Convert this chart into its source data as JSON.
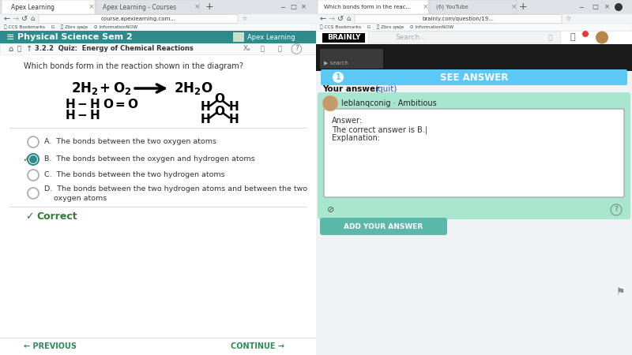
{
  "left_panel": {
    "bg_color": "#ffffff",
    "header_color": "#2e8b8b",
    "header_text": "Physical Science Sem 2",
    "header_text_color": "#ffffff",
    "breadcrumb": "3.2.2  Quiz:  Energy of Chemical Reactions",
    "question": "Which bonds form in the reaction shown in the diagram?",
    "options": [
      {
        "label": "A.",
        "text": "The bonds between the two oxygen atoms",
        "selected": false
      },
      {
        "label": "B.",
        "text": "The bonds between the oxygen and hydrogen atoms",
        "selected": true
      },
      {
        "label": "C.",
        "text": "The bonds between the two hydrogen atoms",
        "selected": false
      },
      {
        "label": "D.",
        "text": "The bonds between the two hydrogen atoms and between the two oxygen atoms",
        "selected": false
      }
    ],
    "correct_text": "Correct",
    "prev_text": "← PREVIOUS",
    "next_text": "CONTINUE →",
    "nav_color": "#2e8b57",
    "logo_text": "Apex Learning",
    "tab1_text": "Apex Learning",
    "tab2_text": "Apex Learning - Courses"
  },
  "right_panel": {
    "bg_color": "#f0f2f5",
    "see_answer_color": "#5bc8f5",
    "see_answer_text": "SEE ANSWER",
    "your_answer_text": "Your answer",
    "quit_text": "(quit)",
    "quit_color": "#1565c0",
    "user_name": "leblanqconig · Ambitious",
    "answer_box_bg": "#a8e6cf",
    "answer_line1": "Answer:",
    "answer_line2": "The correct answer is B.|",
    "answer_line3": "Explanation:",
    "add_button_color": "#5cb8a8",
    "add_button_text": "ADD YOUR ANSWER",
    "tab_text1": "Which bonds form in the reac...",
    "tab_text2": "(6) YouTube",
    "brainly_search": "Search..."
  }
}
